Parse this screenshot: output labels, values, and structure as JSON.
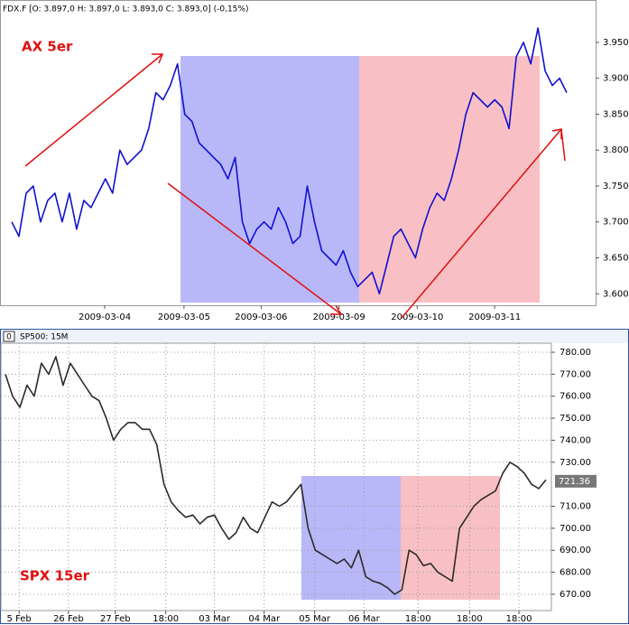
{
  "chart_data": [
    {
      "type": "line",
      "title": "FDX.F [O: 3.897,0  H: 3.897,0  L: 3.893,0  C: 3.893,0] (-0,15%)",
      "annotation": "AX 5er",
      "color": "#1010d0",
      "grid": false,
      "values": [
        3700,
        3680,
        3740,
        3750,
        3700,
        3730,
        3740,
        3700,
        3740,
        3690,
        3730,
        3720,
        3740,
        3760,
        3740,
        3800,
        3780,
        3790,
        3800,
        3830,
        3880,
        3870,
        3890,
        3920,
        3850,
        3840,
        3810,
        3800,
        3790,
        3780,
        3760,
        3790,
        3700,
        3670,
        3690,
        3700,
        3690,
        3720,
        3700,
        3670,
        3680,
        3750,
        3700,
        3660,
        3650,
        3640,
        3660,
        3630,
        3610,
        3620,
        3630,
        3600,
        3640,
        3680,
        3690,
        3670,
        3650,
        3690,
        3720,
        3740,
        3730,
        3760,
        3800,
        3850,
        3880,
        3870,
        3860,
        3870,
        3860,
        3830,
        3930,
        3950,
        3920,
        3970,
        3910,
        3890,
        3900,
        3880
      ],
      "ylim": [
        3584,
        4009
      ],
      "yticks": [
        {
          "value": 3600,
          "label": "3.600,0"
        },
        {
          "value": 3650,
          "label": "3.650,0"
        },
        {
          "value": 3700,
          "label": "3.700,0"
        },
        {
          "value": 3750,
          "label": "3.750,0"
        },
        {
          "value": 3800,
          "label": "3.800,0"
        },
        {
          "value": 3850,
          "label": "3.850,0"
        },
        {
          "value": 3900,
          "label": "3.900,0"
        },
        {
          "value": 3950,
          "label": "3.950,0"
        }
      ],
      "xlim": [
        -1.5,
        81
      ],
      "xticks": [
        {
          "value": 12.9,
          "label": "2009-03-04"
        },
        {
          "value": 23.9,
          "label": "2009-03-05"
        },
        {
          "value": 34.6,
          "label": "2009-03-06"
        },
        {
          "value": 45.4,
          "label": "2009-03-09"
        },
        {
          "value": 56.25,
          "label": "2009-03-10"
        },
        {
          "value": 67,
          "label": "2009-03-11"
        }
      ]
    },
    {
      "type": "line",
      "title": "SP500: 15M",
      "annotation": "SPX 15er",
      "color": "#2a2a2a",
      "grid": true,
      "values": [
        770,
        760,
        755,
        765,
        760,
        775,
        770,
        778,
        765,
        775,
        770,
        765,
        760,
        758,
        750,
        740,
        745,
        748,
        748,
        745,
        745,
        738,
        720,
        712,
        708,
        705,
        706,
        702,
        705,
        706,
        700,
        695,
        698,
        705,
        700,
        698,
        705,
        712,
        710,
        712,
        716,
        720,
        700,
        690,
        688,
        686,
        684,
        686,
        682,
        690,
        678,
        676,
        675,
        673,
        670,
        672,
        690,
        688,
        683,
        684,
        680,
        678,
        676,
        700,
        705,
        710,
        713,
        715,
        717,
        725,
        730,
        728,
        725,
        720,
        718,
        722
      ],
      "last_price": 721.36,
      "ylim": [
        662.6,
        784.1
      ],
      "yticks": [
        {
          "value": 670,
          "label": "670.00"
        },
        {
          "value": 680,
          "label": "680.00"
        },
        {
          "value": 690,
          "label": "690.00"
        },
        {
          "value": 700,
          "label": "700.00"
        },
        {
          "value": 710,
          "label": "710.00"
        },
        {
          "value": 730,
          "label": "730.00"
        },
        {
          "value": 740,
          "label": "740.00"
        },
        {
          "value": 750,
          "label": "750.00"
        },
        {
          "value": 760,
          "label": "760.00"
        },
        {
          "value": 770,
          "label": "770.00"
        },
        {
          "value": 780,
          "label": "780.00"
        }
      ],
      "xlim": [
        -0.625,
        75.75
      ],
      "xticks": [
        {
          "value": 1.9,
          "label": "5 Feb"
        },
        {
          "value": 8.75,
          "label": "26 Feb"
        },
        {
          "value": 15.25,
          "label": "27 Feb"
        },
        {
          "value": 22.25,
          "label": "18:00"
        },
        {
          "value": 29,
          "label": "03 Mar"
        },
        {
          "value": 35.9,
          "label": "04 Mar"
        },
        {
          "value": 42.9,
          "label": "05 Mar"
        },
        {
          "value": 49.75,
          "label": "06 Mar"
        },
        {
          "value": 57.25,
          "label": "18:00"
        },
        {
          "value": 64.4,
          "label": "18:00"
        },
        {
          "value": 71.25,
          "label": "18:00"
        }
      ]
    }
  ]
}
